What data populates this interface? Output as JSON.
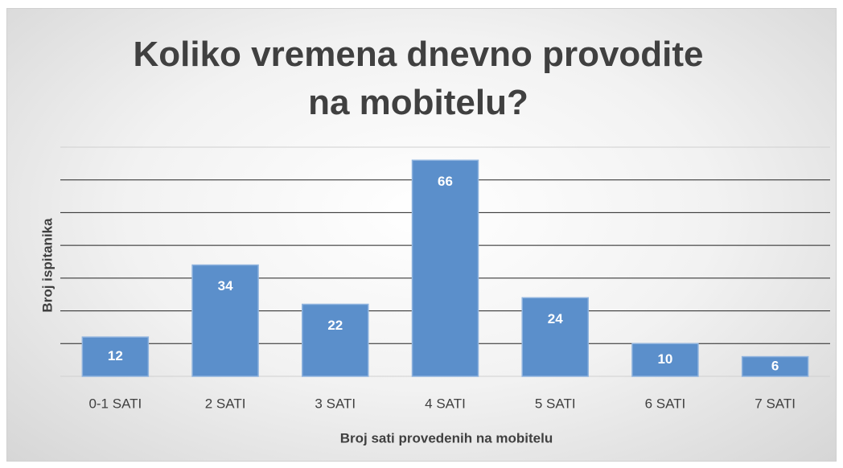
{
  "chart_data": {
    "type": "bar",
    "title": "Koliko vremena dnevno provodite na mobitelu?",
    "x_label": "Broj sati provedenih na mobitelu",
    "y_label": "Broj ispitanika",
    "categories": [
      "0-1 SATI",
      "2 SATI",
      "3 SATI",
      "4 SATI",
      "5 SATI",
      "6 SATI",
      "7 SATI"
    ],
    "values": [
      12,
      34,
      22,
      66,
      24,
      10,
      6
    ],
    "color": "#5b8fcb",
    "ylim": [
      0,
      70
    ],
    "yticks": [
      0,
      10,
      20,
      30,
      40,
      50,
      60,
      70
    ],
    "grid": true
  }
}
